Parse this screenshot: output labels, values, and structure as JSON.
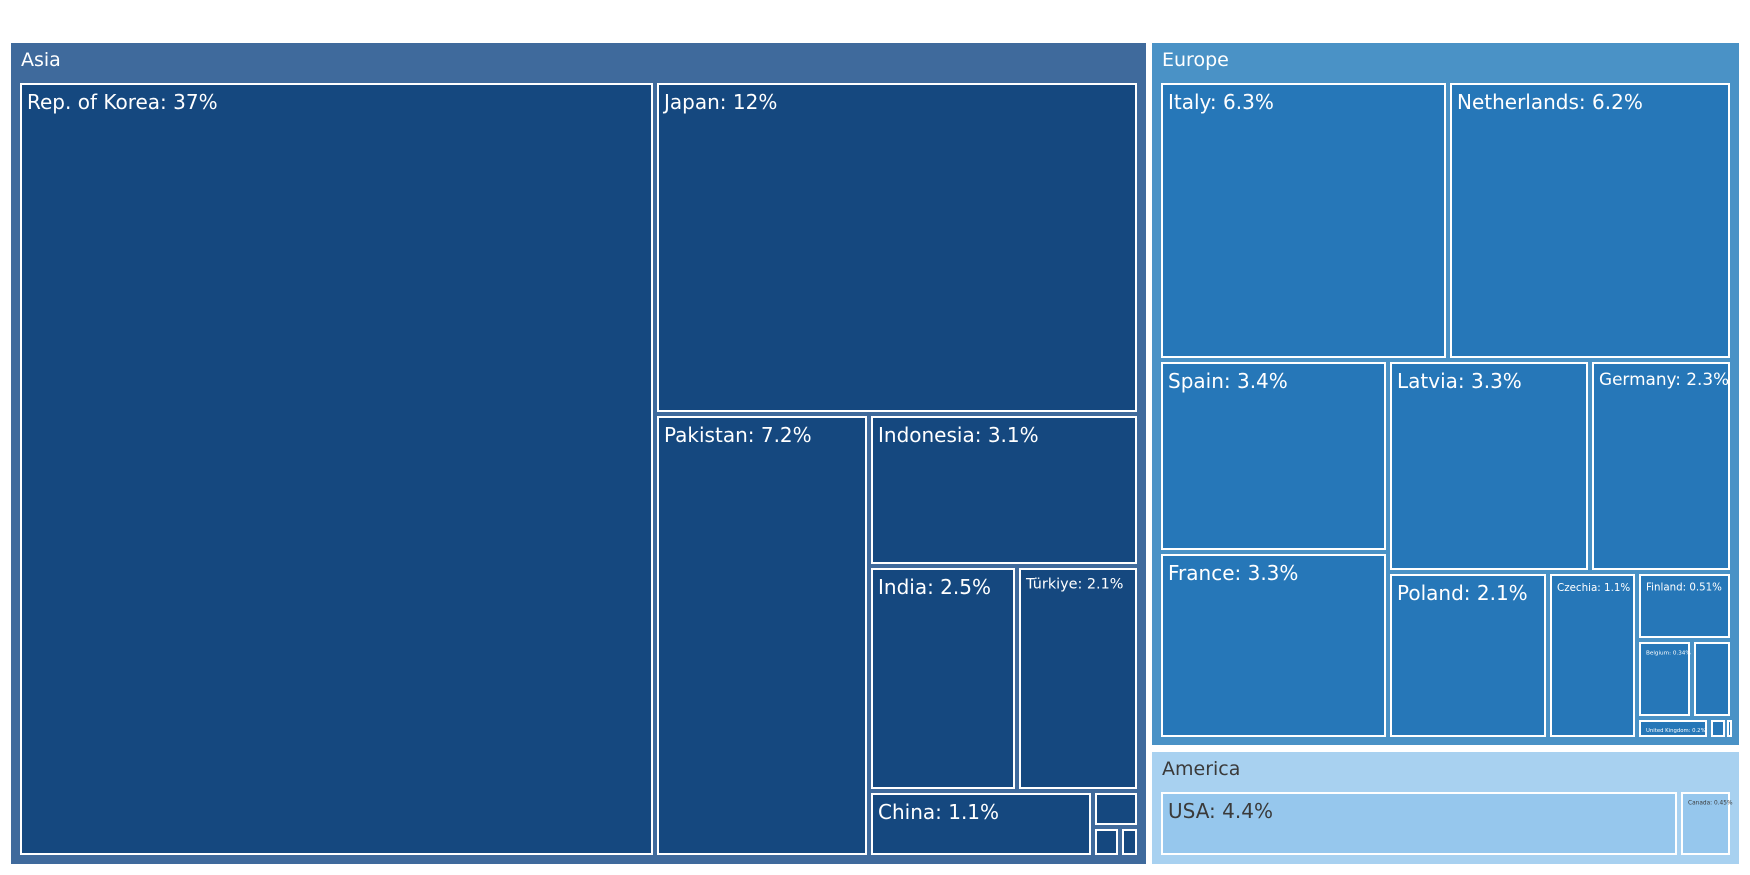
{
  "chart_data": {
    "type": "treemap",
    "unit": "%",
    "groups": [
      {
        "name": "Asia",
        "color": "#3f6a9c",
        "tile_color": "#15487f",
        "title_color": "#ffffff",
        "items": [
          {
            "name": "Rep. of Korea",
            "value": 37,
            "label": "Rep. of Korea: 37%"
          },
          {
            "name": "Japan",
            "value": 12,
            "label": "Japan: 12%"
          },
          {
            "name": "Pakistan",
            "value": 7.2,
            "label": "Pakistan: 7.2%"
          },
          {
            "name": "Indonesia",
            "value": 3.1,
            "label": "Indonesia: 3.1%"
          },
          {
            "name": "India",
            "value": 2.5,
            "label": "India: 2.5%"
          },
          {
            "name": "Türkiye",
            "value": 2.1,
            "label": "Türkiye: 2.1%"
          },
          {
            "name": "China",
            "value": 1.1,
            "label": "China: 1.1%"
          },
          {
            "name": "",
            "value": 0.2,
            "label": ""
          },
          {
            "name": "",
            "value": 0.14,
            "label": ""
          },
          {
            "name": "",
            "value": 0.07,
            "label": ""
          }
        ]
      },
      {
        "name": "Europe",
        "color": "#4a92c6",
        "tile_color": "#2677b8",
        "title_color": "#ffffff",
        "items": [
          {
            "name": "Italy",
            "value": 6.3,
            "label": "Italy: 6.3%"
          },
          {
            "name": "Netherlands",
            "value": 6.2,
            "label": "Netherlands: 6.2%"
          },
          {
            "name": "Spain",
            "value": 3.4,
            "label": "Spain: 3.4%"
          },
          {
            "name": "Latvia",
            "value": 3.3,
            "label": "Latvia: 3.3%"
          },
          {
            "name": "Germany",
            "value": 2.3,
            "label": "Germany: 2.3%"
          },
          {
            "name": "France",
            "value": 3.3,
            "label": "France: 3.3%"
          },
          {
            "name": "Poland",
            "value": 2.1,
            "label": "Poland: 2.1%"
          },
          {
            "name": "Czechia",
            "value": 1.1,
            "label": "Czechia: 1.1%"
          },
          {
            "name": "Finland",
            "value": 0.51,
            "label": "Finland: 0.51%"
          },
          {
            "name": "Belgium",
            "value": 0.34,
            "label": "Belgium: 0.34%"
          },
          {
            "name": "",
            "value": 0.29,
            "label": ""
          },
          {
            "name": "United Kingdom",
            "value": 0.2,
            "label": "United Kingdom: 0.2%"
          },
          {
            "name": "",
            "value": 0.05,
            "label": ""
          },
          {
            "name": "",
            "value": 0.02,
            "label": ""
          }
        ]
      },
      {
        "name": "America",
        "color": "#a8d1f0",
        "tile_color": "#96c7ed",
        "title_color": "#3a3a3a",
        "items": [
          {
            "name": "USA",
            "value": 4.4,
            "label": "USA: 4.4%"
          },
          {
            "name": "Canada",
            "value": 0.45,
            "label": "Canada: 0.45%"
          }
        ]
      }
    ]
  }
}
